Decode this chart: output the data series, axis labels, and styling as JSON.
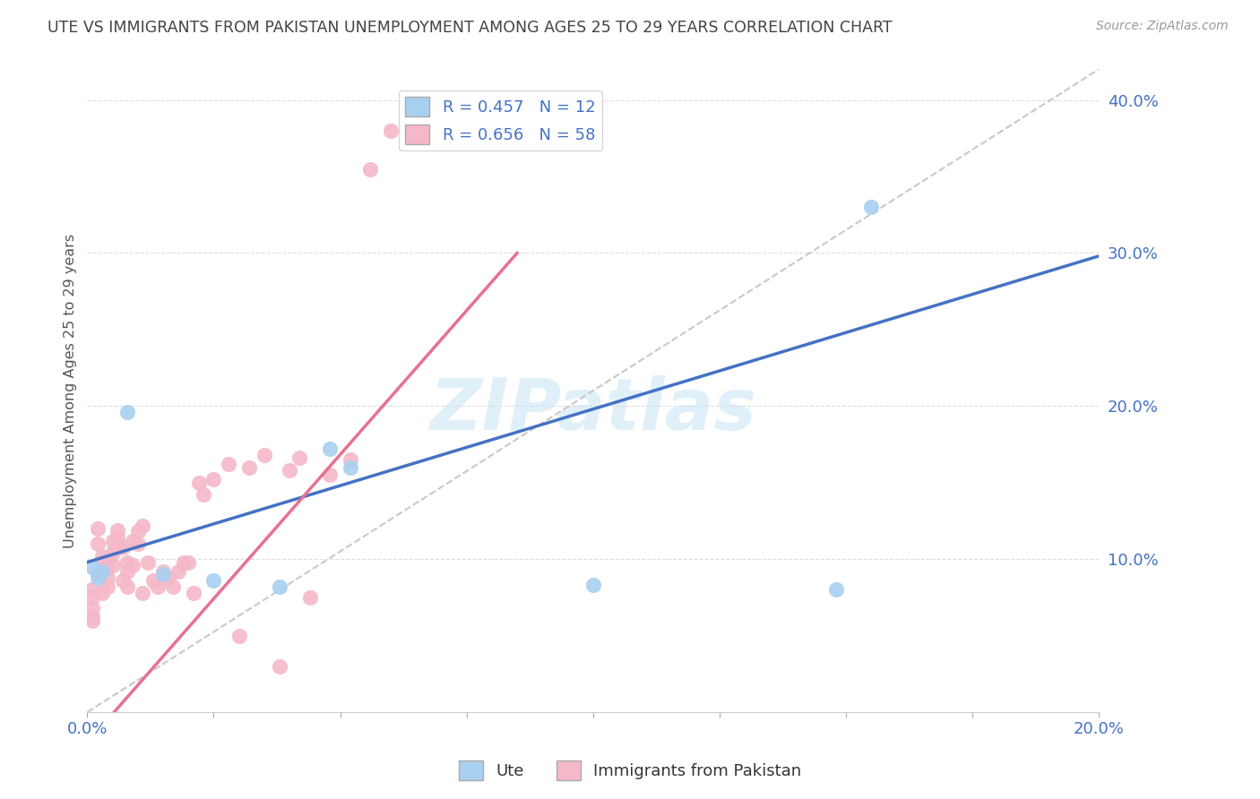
{
  "title": "UTE VS IMMIGRANTS FROM PAKISTAN UNEMPLOYMENT AMONG AGES 25 TO 29 YEARS CORRELATION CHART",
  "source": "Source: ZipAtlas.com",
  "ylabel": "Unemployment Among Ages 25 to 29 years",
  "xlim": [
    0.0,
    0.2
  ],
  "ylim": [
    0.0,
    0.42
  ],
  "xtick_positions": [
    0.0,
    0.025,
    0.05,
    0.075,
    0.1,
    0.125,
    0.15,
    0.175,
    0.2
  ],
  "xtick_labels": [
    "0.0%",
    "",
    "",
    "",
    "",
    "",
    "",
    "",
    "20.0%"
  ],
  "ytick_positions": [
    0.1,
    0.2,
    0.3,
    0.4
  ],
  "ytick_labels": [
    "10.0%",
    "20.0%",
    "30.0%",
    "40.0%"
  ],
  "ute_scatter_color": "#A8D0F0",
  "pak_scatter_color": "#F4B8C8",
  "ute_line_color": "#4472C4",
  "pak_line_color": "#E87090",
  "diagonal_color": "#C8C8C8",
  "watermark": "ZIPatlas",
  "legend_r_ute": "R = 0.457",
  "legend_n_ute": "N = 12",
  "legend_r_pak": "R = 0.656",
  "legend_n_pak": "N = 58",
  "ute_x": [
    0.001,
    0.002,
    0.003,
    0.008,
    0.015,
    0.025,
    0.038,
    0.048,
    0.052,
    0.1,
    0.148,
    0.155
  ],
  "ute_y": [
    0.095,
    0.088,
    0.092,
    0.196,
    0.09,
    0.086,
    0.082,
    0.172,
    0.16,
    0.083,
    0.08,
    0.33
  ],
  "pak_x": [
    0.001,
    0.001,
    0.001,
    0.001,
    0.001,
    0.002,
    0.002,
    0.002,
    0.003,
    0.003,
    0.003,
    0.003,
    0.004,
    0.004,
    0.004,
    0.004,
    0.005,
    0.005,
    0.005,
    0.006,
    0.006,
    0.006,
    0.007,
    0.007,
    0.008,
    0.008,
    0.008,
    0.009,
    0.009,
    0.01,
    0.01,
    0.011,
    0.011,
    0.012,
    0.013,
    0.014,
    0.015,
    0.016,
    0.017,
    0.018,
    0.019,
    0.02,
    0.021,
    0.022,
    0.023,
    0.025,
    0.028,
    0.03,
    0.032,
    0.035,
    0.038,
    0.04,
    0.042,
    0.044,
    0.048,
    0.052,
    0.056,
    0.06
  ],
  "pak_y": [
    0.062,
    0.068,
    0.075,
    0.08,
    0.06,
    0.11,
    0.12,
    0.09,
    0.078,
    0.092,
    0.096,
    0.102,
    0.082,
    0.088,
    0.094,
    0.1,
    0.096,
    0.104,
    0.112,
    0.108,
    0.114,
    0.119,
    0.086,
    0.108,
    0.082,
    0.092,
    0.098,
    0.096,
    0.112,
    0.11,
    0.118,
    0.122,
    0.078,
    0.098,
    0.086,
    0.082,
    0.092,
    0.088,
    0.082,
    0.092,
    0.098,
    0.098,
    0.078,
    0.15,
    0.142,
    0.152,
    0.162,
    0.05,
    0.16,
    0.168,
    0.03,
    0.158,
    0.166,
    0.075,
    0.155,
    0.165,
    0.355,
    0.38
  ],
  "background_color": "#FFFFFF",
  "grid_color": "#DDDDDD"
}
